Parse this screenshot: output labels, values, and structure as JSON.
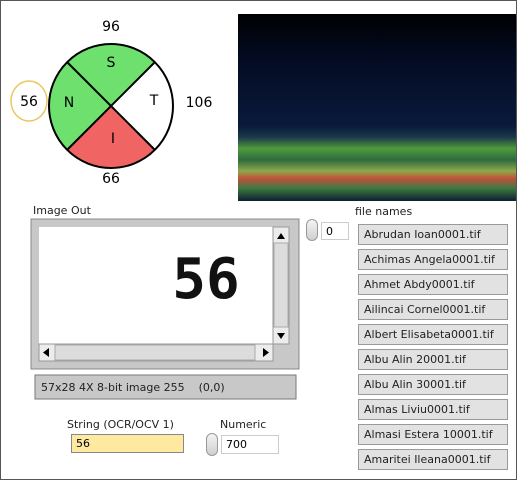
{
  "diagram": {
    "top": "96",
    "right": "106",
    "bottom": "66",
    "left": "56",
    "sectors": {
      "top": "S",
      "right": "T",
      "bottom": "I",
      "left": "N"
    }
  },
  "image_out": {
    "label": "Image Out",
    "text": "56",
    "status": "57x28 4X 8-bit image 255    (0,0)"
  },
  "string_control": {
    "label": "String (OCR/OCV 1)",
    "value": "56"
  },
  "numeric_control": {
    "label": "Numeric",
    "value": "700"
  },
  "file_names": {
    "label": "file names",
    "index": "0",
    "items": [
      "Abrudan Ioan0001.tif",
      "Achimas Angela0001.tif",
      "Ahmet Abdy0001.tif",
      "Ailincai Cornel0001.tif",
      "Albert Elisabeta0001.tif",
      "Albu Alin 20001.tif",
      "Albu Alin 30001.tif",
      "Almas Liviu0001.tif",
      "Almasi Estera 10001.tif",
      "Amaritei Ileana0001.tif"
    ]
  }
}
